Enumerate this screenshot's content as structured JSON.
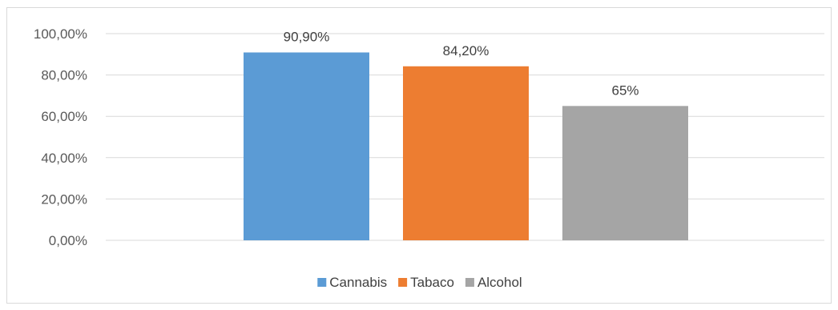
{
  "chart_data": {
    "type": "bar",
    "categories": [
      ""
    ],
    "series": [
      {
        "name": "Cannabis",
        "values": [
          90.9
        ],
        "label": "90,90%",
        "color": "#5b9bd5"
      },
      {
        "name": "Tabaco",
        "values": [
          84.2
        ],
        "label": "84,20%",
        "color": "#ed7d31"
      },
      {
        "name": "Alcohol",
        "values": [
          65
        ],
        "label": "65%",
        "color": "#a5a5a5"
      }
    ],
    "y_ticks": [
      "0,00%",
      "20,00%",
      "40,00%",
      "60,00%",
      "80,00%",
      "100,00%"
    ],
    "ylim": [
      0,
      100
    ],
    "y_tick_values": [
      0,
      20,
      40,
      60,
      80,
      100
    ],
    "grid": true,
    "gridline_color": "#d9d9d9",
    "legend_position": "bottom",
    "title": "",
    "xlabel": "",
    "ylabel": ""
  }
}
